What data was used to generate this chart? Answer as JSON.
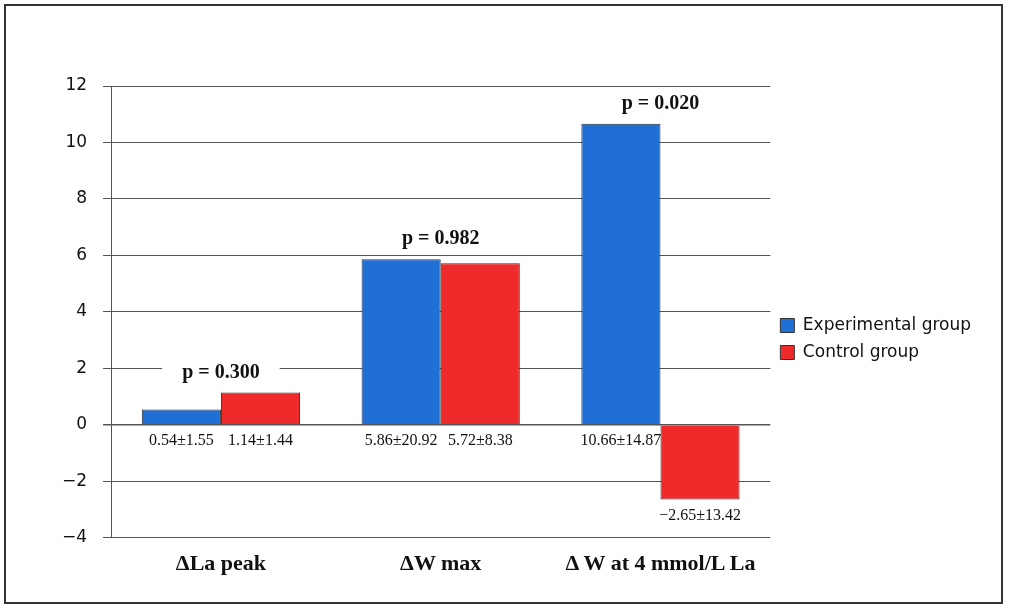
{
  "chart_data": {
    "type": "bar",
    "categories": [
      "ΔLa peak",
      "ΔW max",
      "Δ W at 4 mmol/L La"
    ],
    "series": [
      {
        "name": "Experimental group",
        "color": "#1f6fd6",
        "values": [
          0.54,
          5.86,
          10.66
        ],
        "value_labels": [
          "0.54±1.55",
          "5.86±20.92",
          "10.66±14.87"
        ]
      },
      {
        "name": "Control group",
        "color": "#ee2a2a",
        "values": [
          1.14,
          5.72,
          -2.65
        ],
        "value_labels": [
          "1.14±1.44",
          "5.72±8.38",
          "−2.65±13.42"
        ]
      }
    ],
    "ylim": [
      -4,
      12
    ],
    "yticks": [
      {
        "value": -4,
        "label": "−4"
      },
      {
        "value": -2,
        "label": "−2"
      },
      0,
      2,
      4,
      6,
      8,
      10,
      12
    ],
    "grid": "y",
    "legend": "right",
    "annotations": [
      {
        "text": "p = 0.300",
        "x": "ΔLa peak",
        "y": 1.14
      },
      {
        "text": "p = 0.982",
        "x": "ΔW max",
        "y": 5.86
      },
      {
        "text": "p = 0.020",
        "x": "Δ W at 4 mmol/L La",
        "y": 10.66
      }
    ]
  }
}
